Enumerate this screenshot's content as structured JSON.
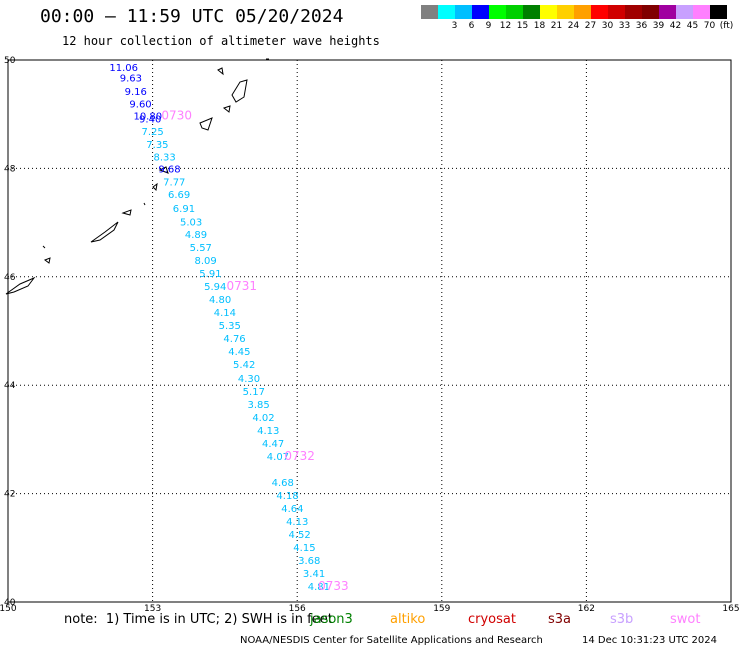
{
  "header": {
    "title": "00:00 – 11:59 UTC 05/20/2024",
    "subtitle": "12 hour collection of altimeter wave heights"
  },
  "color_scale": {
    "colors": [
      "#808080",
      "#00ffff",
      "#00bfff",
      "#0000ff",
      "#00ff00",
      "#00d000",
      "#008000",
      "#ffff00",
      "#ffd000",
      "#ffa000",
      "#ff0000",
      "#d00000",
      "#a00000",
      "#800000",
      "#a000a0",
      "#c8a0ff",
      "#ff80ff",
      "#000000"
    ],
    "labels": [
      "",
      "3",
      "6",
      "9",
      "12",
      "15",
      "18",
      "21",
      "24",
      "27",
      "30",
      "33",
      "36",
      "39",
      "42",
      "45",
      "70",
      "(ft)"
    ]
  },
  "map": {
    "lon_ticks": [
      "150",
      "153",
      "156",
      "159",
      "162",
      "165"
    ],
    "lat_ticks": [
      "50",
      "48",
      "46",
      "44",
      "42",
      "40"
    ],
    "lon_range": [
      150,
      165
    ],
    "lat_range": [
      40,
      50
    ],
    "observations": [
      {
        "value": "11.06",
        "lon": 152.4,
        "lat": 49.8,
        "color": "#0000ff"
      },
      {
        "value": "9.63",
        "lon": 152.55,
        "lat": 49.6,
        "color": "#0000ff"
      },
      {
        "value": "9.16",
        "lon": 152.65,
        "lat": 49.35,
        "color": "#0000ff"
      },
      {
        "value": "9.60",
        "lon": 152.75,
        "lat": 49.12,
        "color": "#0000ff"
      },
      {
        "value": "10.80",
        "lon": 152.9,
        "lat": 48.9,
        "color": "#0000ff"
      },
      {
        "value": "9.40",
        "lon": 152.95,
        "lat": 48.85,
        "color": "#0000ff"
      },
      {
        "value": "7.25",
        "lon": 153.0,
        "lat": 48.62,
        "color": "#00bfff"
      },
      {
        "value": "7.35",
        "lon": 153.1,
        "lat": 48.38,
        "color": "#00bfff"
      },
      {
        "value": "8.33",
        "lon": 153.25,
        "lat": 48.15,
        "color": "#00bfff"
      },
      {
        "value": "9.68",
        "lon": 153.35,
        "lat": 47.92,
        "color": "#0000ff"
      },
      {
        "value": "7.77",
        "lon": 153.45,
        "lat": 47.68,
        "color": "#00bfff"
      },
      {
        "value": "6.69",
        "lon": 153.55,
        "lat": 47.45,
        "color": "#00bfff"
      },
      {
        "value": "6.91",
        "lon": 153.65,
        "lat": 47.2,
        "color": "#00bfff"
      },
      {
        "value": "5.03",
        "lon": 153.8,
        "lat": 46.95,
        "color": "#00bfff"
      },
      {
        "value": "4.89",
        "lon": 153.9,
        "lat": 46.72,
        "color": "#00bfff"
      },
      {
        "value": "5.57",
        "lon": 154.0,
        "lat": 46.48,
        "color": "#00bfff"
      },
      {
        "value": "8.09",
        "lon": 154.1,
        "lat": 46.24,
        "color": "#00bfff"
      },
      {
        "value": "5.91",
        "lon": 154.2,
        "lat": 46.0,
        "color": "#00bfff"
      },
      {
        "value": "5.94",
        "lon": 154.3,
        "lat": 45.76,
        "color": "#00bfff"
      },
      {
        "value": "4.80",
        "lon": 154.4,
        "lat": 45.52,
        "color": "#00bfff"
      },
      {
        "value": "4.14",
        "lon": 154.5,
        "lat": 45.28,
        "color": "#00bfff"
      },
      {
        "value": "5.35",
        "lon": 154.6,
        "lat": 45.04,
        "color": "#00bfff"
      },
      {
        "value": "4.76",
        "lon": 154.7,
        "lat": 44.8,
        "color": "#00bfff"
      },
      {
        "value": "4.45",
        "lon": 154.8,
        "lat": 44.56,
        "color": "#00bfff"
      },
      {
        "value": "5.42",
        "lon": 154.9,
        "lat": 44.32,
        "color": "#00bfff"
      },
      {
        "value": "4.30",
        "lon": 155.0,
        "lat": 44.06,
        "color": "#00bfff"
      },
      {
        "value": "5.17",
        "lon": 155.1,
        "lat": 43.82,
        "color": "#00bfff"
      },
      {
        "value": "3.85",
        "lon": 155.2,
        "lat": 43.58,
        "color": "#00bfff"
      },
      {
        "value": "4.02",
        "lon": 155.3,
        "lat": 43.34,
        "color": "#00bfff"
      },
      {
        "value": "4.13",
        "lon": 155.4,
        "lat": 43.1,
        "color": "#00bfff"
      },
      {
        "value": "4.47",
        "lon": 155.5,
        "lat": 42.86,
        "color": "#00bfff"
      },
      {
        "value": "4.07",
        "lon": 155.6,
        "lat": 42.62,
        "color": "#00bfff"
      },
      {
        "value": "4.68",
        "lon": 155.7,
        "lat": 42.14,
        "color": "#00bfff"
      },
      {
        "value": "4.18",
        "lon": 155.8,
        "lat": 41.9,
        "color": "#00bfff"
      },
      {
        "value": "4.64",
        "lon": 155.9,
        "lat": 41.66,
        "color": "#00bfff"
      },
      {
        "value": "4.13",
        "lon": 156.0,
        "lat": 41.42,
        "color": "#00bfff"
      },
      {
        "value": "4.52",
        "lon": 156.05,
        "lat": 41.18,
        "color": "#00bfff"
      },
      {
        "value": "4.15",
        "lon": 156.15,
        "lat": 40.94,
        "color": "#00bfff"
      },
      {
        "value": "3.68",
        "lon": 156.25,
        "lat": 40.7,
        "color": "#00bfff"
      },
      {
        "value": "3.41",
        "lon": 156.35,
        "lat": 40.46,
        "color": "#00bfff"
      },
      {
        "value": "4.81",
        "lon": 156.45,
        "lat": 40.22,
        "color": "#00bfff"
      }
    ],
    "time_labels": [
      {
        "text": "0730",
        "lon": 153.5,
        "lat": 48.9
      },
      {
        "text": "0731",
        "lon": 154.85,
        "lat": 45.76
      },
      {
        "text": "0732",
        "lon": 156.05,
        "lat": 42.62
      },
      {
        "text": "0733",
        "lon": 156.75,
        "lat": 40.22
      }
    ],
    "time_label_color": "#ff80ff"
  },
  "footer": {
    "note": "note:  1) Time is in UTC; 2) SWH is in feet",
    "satellites": [
      {
        "name": "jason3",
        "color": "#008000"
      },
      {
        "name": "altiko",
        "color": "#ffa000"
      },
      {
        "name": "cryosat",
        "color": "#d00000"
      },
      {
        "name": "s3a",
        "color": "#800000"
      },
      {
        "name": "s3b",
        "color": "#c8a0ff"
      },
      {
        "name": "swot",
        "color": "#ff80ff"
      }
    ],
    "credit": "NOAA/NESDIS Center for Satellite Applications and Research",
    "timestamp": "14 Dec 10:31:23 UTC 2024"
  }
}
